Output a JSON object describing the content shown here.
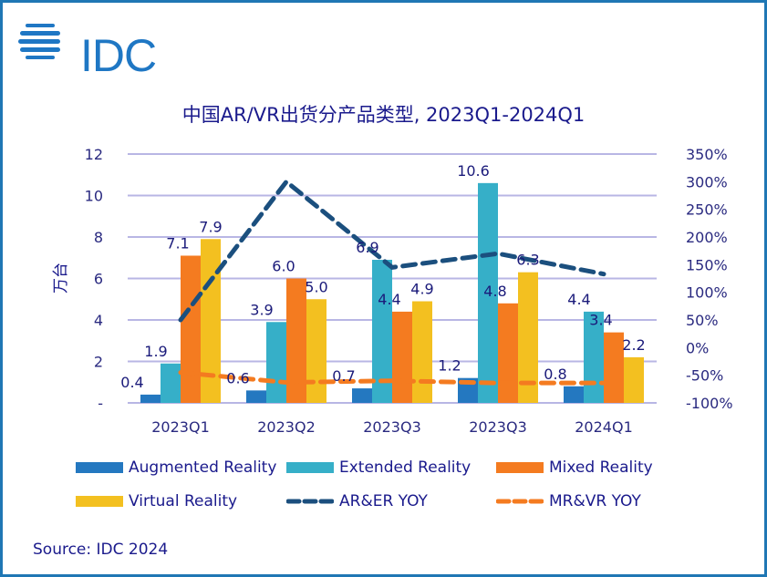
{
  "brand": {
    "logo_text": "IDC",
    "logo_color": "#1f77c4"
  },
  "source": "Source: IDC 2024",
  "chart_data": {
    "type": "bar",
    "title": "中国AR/VR出货分产品类型, 2023Q1-2024Q1",
    "xlabel": "",
    "ylabel": "万台",
    "categories": [
      "2023Q1",
      "2023Q2",
      "2023Q3",
      "2023Q3",
      "2024Q1"
    ],
    "ylim": [
      0,
      12
    ],
    "yticks": [
      "-",
      "2",
      "4",
      "6",
      "8",
      "10",
      "12"
    ],
    "y2lim": [
      -100,
      350
    ],
    "y2ticks": [
      "-100%",
      "-50%",
      "0%",
      "50%",
      "100%",
      "150%",
      "200%",
      "250%",
      "300%",
      "350%"
    ],
    "grid": true,
    "legend_position": "bottom",
    "series": [
      {
        "name": "Augmented Reality",
        "type": "bar",
        "color": "#2478c0",
        "values": [
          0.4,
          0.6,
          0.7,
          1.2,
          0.8
        ]
      },
      {
        "name": "Extended Reality",
        "type": "bar",
        "color": "#36afc8",
        "values": [
          1.9,
          3.9,
          6.9,
          10.6,
          4.4
        ]
      },
      {
        "name": "Mixed Reality",
        "type": "bar",
        "color": "#f47b20",
        "values": [
          7.1,
          6.0,
          4.4,
          4.8,
          3.4
        ]
      },
      {
        "name": "Virtual Reality",
        "type": "bar",
        "color": "#f3c020",
        "values": [
          7.9,
          5.0,
          4.9,
          6.3,
          2.2
        ]
      },
      {
        "name": "AR&ER YOY",
        "type": "line",
        "axis": "right",
        "dashed": true,
        "color": "#1b4f7e",
        "values": [
          50,
          300,
          145,
          170,
          133
        ]
      },
      {
        "name": "MR&VR YOY",
        "type": "line",
        "axis": "right",
        "dashed": true,
        "color": "#f47b20",
        "values": [
          -45,
          -63,
          -60,
          -64,
          -64
        ]
      }
    ]
  }
}
